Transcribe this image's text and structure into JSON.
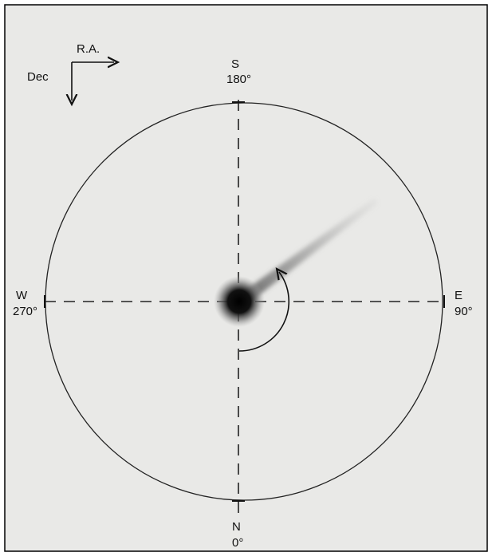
{
  "compass": {
    "ra": "R.A.",
    "dec": "Dec"
  },
  "directions": {
    "south": {
      "label": "S",
      "angle": "180°"
    },
    "west": {
      "label": "W",
      "angle": "270°"
    },
    "east": {
      "label": "E",
      "angle": "90°"
    },
    "north": {
      "label": "N",
      "angle": "0°"
    }
  }
}
